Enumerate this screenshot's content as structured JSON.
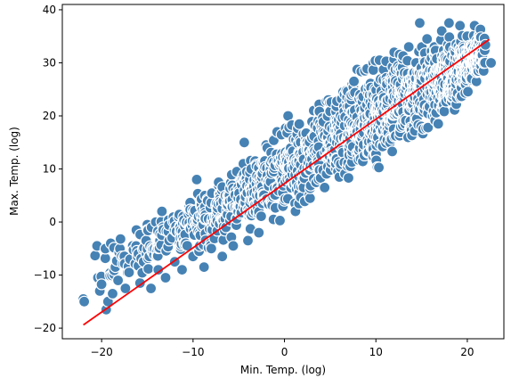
{
  "chart_data": {
    "type": "scatter",
    "title": "",
    "xlabel": "Min. Temp. (log)",
    "ylabel": "Max. Temp. (log)",
    "xlim": [
      -24.3,
      24.0
    ],
    "ylim": [
      -22.0,
      41.0
    ],
    "xticks": [
      -20,
      -10,
      0,
      10,
      20
    ],
    "yticks": [
      -20,
      -10,
      0,
      10,
      20,
      30,
      40
    ],
    "xtick_labels": [
      "−20",
      "−10",
      "0",
      "10",
      "20"
    ],
    "ytick_labels": [
      "−20",
      "−10",
      "0",
      "10",
      "20",
      "30",
      "40"
    ],
    "grid": false,
    "point_color": "#4682b4",
    "point_edge_color": "#ffffff",
    "line_color": "#ff0000",
    "regression_line": {
      "x": [
        -22.0,
        22.4
      ],
      "y": [
        -19.4,
        34.4
      ]
    },
    "cloud_spread": {
      "x": [
        -22,
        -16,
        -8,
        0,
        8,
        16,
        22
      ],
      "lower": [
        -15.5,
        -12.0,
        -6.5,
        -1.5,
        6.0,
        15.0,
        26.5
      ],
      "upper": [
        -4.0,
        1.5,
        8.5,
        20.0,
        30.5,
        36.5,
        37.5
      ]
    },
    "points": [
      [
        -22.0,
        -14.5
      ],
      [
        -21.9,
        -15.0
      ],
      [
        -20.5,
        -4.5
      ],
      [
        -20.4,
        -10.5
      ],
      [
        -20.2,
        -13.0
      ],
      [
        -19.5,
        -16.5
      ],
      [
        -19.3,
        -15.0
      ],
      [
        -19.0,
        -4.0
      ],
      [
        -18.8,
        -13.5
      ],
      [
        -18.5,
        -8.5
      ],
      [
        -18.2,
        -11.0
      ],
      [
        -17.8,
        -6.5
      ],
      [
        -17.4,
        -12.5
      ],
      [
        -17.0,
        -9.5
      ],
      [
        -16.6,
        -4.5
      ],
      [
        -16.2,
        -1.5
      ],
      [
        -15.8,
        -11.5
      ],
      [
        -15.4,
        -7.5
      ],
      [
        -15.0,
        -0.5
      ],
      [
        -14.6,
        -12.5
      ],
      [
        -14.2,
        -5.0
      ],
      [
        -13.8,
        -9.0
      ],
      [
        -13.4,
        2.0
      ],
      [
        -13.0,
        -10.5
      ],
      [
        -12.6,
        -3.5
      ],
      [
        -12.0,
        -7.5
      ],
      [
        -11.6,
        1.0
      ],
      [
        -11.2,
        -9.0
      ],
      [
        -10.8,
        -4.0
      ],
      [
        -10.4,
        3.0
      ],
      [
        -10.0,
        -6.5
      ],
      [
        -9.6,
        8.0
      ],
      [
        -9.2,
        -2.5
      ],
      [
        -8.8,
        -8.5
      ],
      [
        -8.4,
        4.0
      ],
      [
        -8.0,
        -5.0
      ],
      [
        -7.6,
        1.0
      ],
      [
        -7.2,
        7.5
      ],
      [
        -6.8,
        -6.5
      ],
      [
        -6.4,
        -1.0
      ],
      [
        -6.0,
        5.0
      ],
      [
        -5.6,
        -4.5
      ],
      [
        -5.2,
        9.5
      ],
      [
        -4.8,
        1.5
      ],
      [
        -4.4,
        15.0
      ],
      [
        -4.0,
        -3.5
      ],
      [
        -3.6,
        6.0
      ],
      [
        -3.2,
        11.5
      ],
      [
        -2.8,
        -2.0
      ],
      [
        -2.4,
        3.5
      ],
      [
        -2.0,
        14.5
      ],
      [
        -1.6,
        8.0
      ],
      [
        -1.2,
        0.5
      ],
      [
        -0.8,
        17.0
      ],
      [
        -0.4,
        11.0
      ],
      [
        0.0,
        4.0
      ],
      [
        0.4,
        20.0
      ],
      [
        0.8,
        13.0
      ],
      [
        1.2,
        2.0
      ],
      [
        1.6,
        18.5
      ],
      [
        2.0,
        7.0
      ],
      [
        2.4,
        15.0
      ],
      [
        2.8,
        4.5
      ],
      [
        3.2,
        21.0
      ],
      [
        3.6,
        10.5
      ],
      [
        4.0,
        17.0
      ],
      [
        4.4,
        6.5
      ],
      [
        4.8,
        23.0
      ],
      [
        5.2,
        13.0
      ],
      [
        5.6,
        19.5
      ],
      [
        6.0,
        8.5
      ],
      [
        6.4,
        24.5
      ],
      [
        6.8,
        15.5
      ],
      [
        7.2,
        10.5
      ],
      [
        7.6,
        26.5
      ],
      [
        8.0,
        12.5
      ],
      [
        8.4,
        21.0
      ],
      [
        8.8,
        28.5
      ],
      [
        9.2,
        14.0
      ],
      [
        9.6,
        24.0
      ],
      [
        10.0,
        17.5
      ],
      [
        10.4,
        30.5
      ],
      [
        10.8,
        20.0
      ],
      [
        11.2,
        26.0
      ],
      [
        11.6,
        16.0
      ],
      [
        12.0,
        32.0
      ],
      [
        12.4,
        22.5
      ],
      [
        12.8,
        28.0
      ],
      [
        13.2,
        18.5
      ],
      [
        13.6,
        33.0
      ],
      [
        14.0,
        24.5
      ],
      [
        14.4,
        30.0
      ],
      [
        14.8,
        37.5
      ],
      [
        15.2,
        21.5
      ],
      [
        15.6,
        34.5
      ],
      [
        16.0,
        27.0
      ],
      [
        16.4,
        31.5
      ],
      [
        16.8,
        23.5
      ],
      [
        17.2,
        36.0
      ],
      [
        17.6,
        29.5
      ],
      [
        18.0,
        37.5
      ],
      [
        18.4,
        26.5
      ],
      [
        18.8,
        33.5
      ],
      [
        19.2,
        37.0
      ],
      [
        19.6,
        31.0
      ],
      [
        20.0,
        35.0
      ],
      [
        20.4,
        28.5
      ],
      [
        20.8,
        37.0
      ],
      [
        21.0,
        26.5
      ],
      [
        22.6,
        30.0
      ]
    ]
  }
}
